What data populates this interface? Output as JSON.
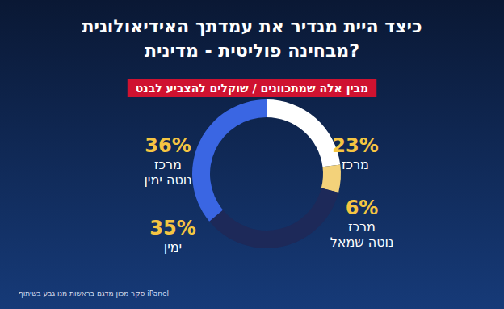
{
  "chart_data": {
    "type": "pie",
    "title": "כיצד היית מגדיר את עמדתך האידיאולוגית\nמבחינה פוליטית - מדינית?",
    "subtitle": "מבין אלה שמתכוונים / שוקלים להצביע לבנט",
    "categories": [
      "מרכז",
      "מרכז נוטה שמאל",
      "ימין",
      "מרכז נוטה ימין"
    ],
    "values": [
      23,
      6,
      35,
      36
    ],
    "value_labels": [
      "23%",
      "6%",
      "35%",
      "36%"
    ],
    "colors": [
      "#ffffff",
      "#f3d27a",
      "#1d2959",
      "#3a66e3"
    ],
    "data_labels": true,
    "annotations": [
      "סקר מכון מדגם בראשות מנו גבע בשיתוף iPanel"
    ]
  }
}
